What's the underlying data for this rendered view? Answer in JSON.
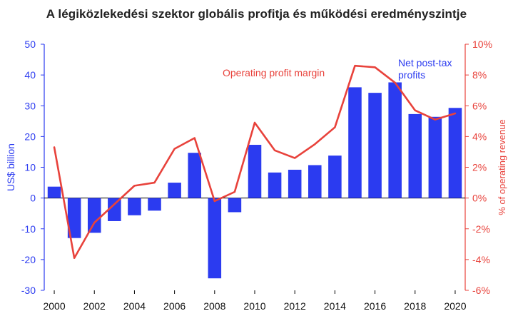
{
  "chart_data": {
    "type": "bar",
    "title": "A légiközlekedési szektor globális profitja és működési eredményszintje",
    "x": [
      2000,
      2001,
      2002,
      2003,
      2004,
      2005,
      2006,
      2007,
      2008,
      2009,
      2010,
      2011,
      2012,
      2013,
      2014,
      2015,
      2016,
      2017,
      2018,
      2019,
      2020
    ],
    "x_tick_labels": [
      "2000",
      "2002",
      "2004",
      "2006",
      "2008",
      "2010",
      "2012",
      "2014",
      "2016",
      "2018",
      "2020"
    ],
    "series": [
      {
        "name": "Net post-tax profits",
        "type": "bar",
        "axis": "left",
        "color": "#2b3bf0",
        "values": [
          3.7,
          -13.0,
          -11.3,
          -7.5,
          -5.6,
          -4.1,
          5.0,
          14.7,
          -26.1,
          -4.6,
          17.3,
          8.3,
          9.2,
          10.7,
          13.8,
          36.0,
          34.2,
          37.6,
          27.3,
          26.4,
          29.3
        ]
      },
      {
        "name": "Operating profit margin",
        "type": "line",
        "axis": "right",
        "color": "#e8423b",
        "values": [
          3.3,
          -3.9,
          -1.6,
          -0.4,
          0.8,
          1.0,
          3.2,
          3.9,
          -0.2,
          0.4,
          4.9,
          3.1,
          2.6,
          3.5,
          4.6,
          8.6,
          8.5,
          7.5,
          5.7,
          5.1,
          5.5
        ]
      }
    ],
    "y_left": {
      "label": "US$ billion",
      "ylim": [
        -30,
        50
      ],
      "ticks": [
        50,
        40,
        30,
        20,
        10,
        0,
        -10,
        -20,
        -30
      ],
      "tick_labels": [
        "50",
        "40",
        "30",
        "20",
        "10",
        "0",
        "-10",
        "-20",
        "-30"
      ]
    },
    "y_right": {
      "label": "% of operating revenue",
      "ylim": [
        -6,
        10
      ],
      "ticks": [
        10,
        8,
        6,
        4,
        2,
        0,
        -2,
        -4,
        -6
      ],
      "tick_labels": [
        "10%",
        "8%",
        "6%",
        "4%",
        "2%",
        "0%",
        "-2%",
        "-4%",
        "-6%"
      ]
    },
    "annotations": {
      "line_label": "Operating profit margin",
      "bar_label_line1": "Net post-tax",
      "bar_label_line2": "profits"
    },
    "grid": false,
    "legend": "inline annotations"
  }
}
